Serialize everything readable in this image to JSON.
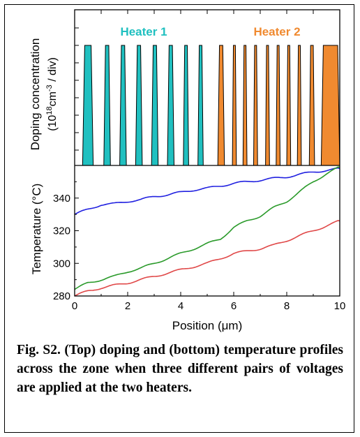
{
  "chart_data": [
    {
      "type": "bar",
      "ylabel_line1": "Doping concentration",
      "ylabel_line2_base": "(10",
      "ylabel_line2_sup1": "18",
      "ylabel_line2_mid": "cm",
      "ylabel_line2_sup2": "-3",
      "ylabel_line2_end": " / div)",
      "xlim": [
        0,
        10
      ],
      "heaters": [
        {
          "name": "Heater 1",
          "color": "#20c0c0",
          "segments": [
            [
              0.3,
              0.7
            ],
            [
              1.1,
              1.35
            ],
            [
              1.7,
              1.95
            ],
            [
              2.3,
              2.55
            ],
            [
              2.9,
              3.15
            ],
            [
              3.5,
              3.75
            ],
            [
              4.1,
              4.3
            ],
            [
              4.65,
              4.85
            ]
          ]
        },
        {
          "name": "Heater 2",
          "color": "#f08a30",
          "segments": [
            [
              5.4,
              5.65
            ],
            [
              5.95,
              6.1
            ],
            [
              6.35,
              6.5
            ],
            [
              6.75,
              6.9
            ],
            [
              7.2,
              7.35
            ],
            [
              7.6,
              7.75
            ],
            [
              8.0,
              8.15
            ],
            [
              8.4,
              8.55
            ],
            [
              8.85,
              9.05
            ],
            [
              9.3,
              10.0
            ]
          ]
        }
      ]
    },
    {
      "type": "line",
      "xlabel": "Position (μm)",
      "ylabel": "Temperature (°C)",
      "xlim": [
        0,
        10
      ],
      "ylim": [
        280,
        360
      ],
      "xticks": [
        "0",
        "2",
        "4",
        "6",
        "8",
        "10"
      ],
      "yticks": [
        "280",
        "300",
        "320",
        "340"
      ],
      "series": [
        {
          "color": "#2020e0",
          "x": [
            0,
            0.5,
            1,
            1.5,
            2,
            2.5,
            3,
            3.5,
            4,
            4.5,
            5,
            5.5,
            6,
            6.5,
            7,
            7.5,
            8,
            8.5,
            9,
            9.5,
            10
          ],
          "y": [
            330,
            333,
            336,
            336.5,
            338,
            339,
            341,
            342,
            343.5,
            345,
            346,
            347.5,
            349,
            350,
            351,
            352,
            353,
            354.5,
            356,
            357,
            358
          ]
        },
        {
          "color": "#2a9a2a",
          "x": [
            0,
            0.5,
            1,
            1.5,
            2,
            2.5,
            3,
            3.5,
            4,
            4.5,
            5,
            5.5,
            6,
            6.5,
            7,
            7.5,
            8,
            8.5,
            9,
            9.5,
            10
          ],
          "y": [
            284,
            288,
            290,
            292,
            295,
            297,
            300,
            303,
            306,
            309,
            312,
            315,
            322,
            326,
            329,
            334,
            338,
            344,
            350,
            355,
            359
          ]
        },
        {
          "color": "#e04848",
          "x": [
            0,
            0.5,
            1,
            1.5,
            2,
            2.5,
            3,
            3.5,
            4,
            4.5,
            5,
            5.5,
            6,
            6.5,
            7,
            7.5,
            8,
            8.5,
            9,
            9.5,
            10
          ],
          "y": [
            280,
            283,
            285,
            286.5,
            288,
            290,
            292,
            294,
            296,
            298,
            300,
            303,
            306,
            307.5,
            309,
            311,
            314,
            317,
            320,
            323,
            326
          ]
        }
      ]
    }
  ],
  "caption": "Fig. S2. (Top) doping and (bottom) temperature profiles across the zone when three different pairs of voltages are applied at the two heaters."
}
